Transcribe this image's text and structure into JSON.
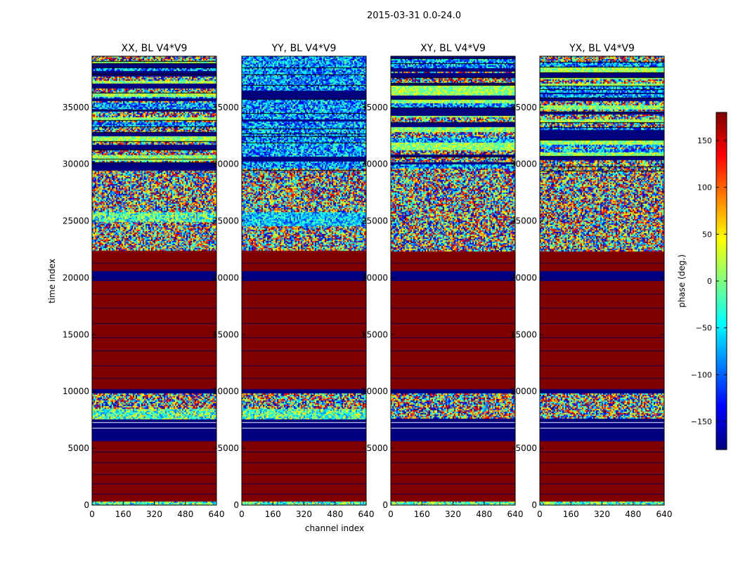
{
  "chart_data": {
    "type": "heatmap",
    "suptitle": "2015-03-31 0.0-24.0",
    "xlabel": "channel index",
    "ylabel": "time index",
    "xlim": [
      0,
      640
    ],
    "ylim": [
      0,
      39500
    ],
    "xticks": [
      0,
      160,
      320,
      480,
      640
    ],
    "yticks": [
      0,
      5000,
      10000,
      15000,
      20000,
      25000,
      30000,
      35000
    ],
    "colorbar": {
      "label": "phase (deg.)",
      "range": [
        -180,
        180
      ],
      "ticks": [
        -150,
        -100,
        -50,
        0,
        50,
        100,
        150
      ],
      "colormap": [
        "#00007f",
        "#0000ff",
        "#00ffff",
        "#7fff7f",
        "#ffff00",
        "#ff7f00",
        "#ff0000",
        "#7f0000"
      ]
    },
    "panels": [
      {
        "title": "XX, BL V4*V9",
        "bands": [
          {
            "t0": 0,
            "t1": 300,
            "kind": "noise_green"
          },
          {
            "t0": 300,
            "t1": 5600,
            "phase": 180
          },
          {
            "t0": 5600,
            "t1": 7600,
            "phase": -180
          },
          {
            "t0": 7600,
            "t1": 8500,
            "kind": "noise_green"
          },
          {
            "t0": 8500,
            "t1": 9800,
            "kind": "noise"
          },
          {
            "t0": 9800,
            "t1": 10200,
            "phase": -180
          },
          {
            "t0": 10200,
            "t1": 19700,
            "phase": 180
          },
          {
            "t0": 19700,
            "t1": 20600,
            "phase": -180
          },
          {
            "t0": 20600,
            "t1": 22400,
            "phase": 180
          },
          {
            "t0": 22400,
            "t1": 25000,
            "kind": "noise"
          },
          {
            "t0": 25000,
            "t1": 25800,
            "kind": "noise_green"
          },
          {
            "t0": 25800,
            "t1": 29600,
            "kind": "noise"
          },
          {
            "t0": 29600,
            "t1": 39500,
            "kind": "striped"
          }
        ]
      },
      {
        "title": "YY, BL V4*V9",
        "bands": [
          {
            "t0": 0,
            "t1": 300,
            "kind": "noise_green"
          },
          {
            "t0": 300,
            "t1": 5600,
            "phase": 180
          },
          {
            "t0": 5600,
            "t1": 7600,
            "phase": -180
          },
          {
            "t0": 7600,
            "t1": 8500,
            "kind": "noise_green"
          },
          {
            "t0": 8500,
            "t1": 9800,
            "kind": "noise"
          },
          {
            "t0": 9800,
            "t1": 10200,
            "phase": -180
          },
          {
            "t0": 10200,
            "t1": 19700,
            "phase": 180
          },
          {
            "t0": 19700,
            "t1": 20600,
            "phase": -180
          },
          {
            "t0": 20600,
            "t1": 22400,
            "phase": 180
          },
          {
            "t0": 22400,
            "t1": 24600,
            "kind": "noise"
          },
          {
            "t0": 24600,
            "t1": 25800,
            "kind": "noise_blue"
          },
          {
            "t0": 25800,
            "t1": 29600,
            "kind": "noise"
          },
          {
            "t0": 29600,
            "t1": 39500,
            "kind": "striped_blue"
          }
        ]
      },
      {
        "title": "XY, BL V4*V9",
        "bands": [
          {
            "t0": 0,
            "t1": 300,
            "kind": "noise_green"
          },
          {
            "t0": 300,
            "t1": 5600,
            "phase": 180
          },
          {
            "t0": 5600,
            "t1": 7600,
            "phase": -180
          },
          {
            "t0": 7600,
            "t1": 9800,
            "kind": "noise"
          },
          {
            "t0": 9800,
            "t1": 10200,
            "phase": -180
          },
          {
            "t0": 10200,
            "t1": 19700,
            "phase": 180
          },
          {
            "t0": 19700,
            "t1": 20600,
            "phase": -180
          },
          {
            "t0": 20600,
            "t1": 22400,
            "phase": 180
          },
          {
            "t0": 22400,
            "t1": 29600,
            "kind": "noise"
          },
          {
            "t0": 29600,
            "t1": 39500,
            "kind": "striped"
          }
        ]
      },
      {
        "title": "YX, BL V4*V9",
        "bands": [
          {
            "t0": 0,
            "t1": 300,
            "kind": "noise_green"
          },
          {
            "t0": 300,
            "t1": 5600,
            "phase": 180
          },
          {
            "t0": 5600,
            "t1": 7600,
            "phase": -180
          },
          {
            "t0": 7600,
            "t1": 9800,
            "kind": "noise"
          },
          {
            "t0": 9800,
            "t1": 10200,
            "phase": -180
          },
          {
            "t0": 10200,
            "t1": 19700,
            "phase": 180
          },
          {
            "t0": 19700,
            "t1": 20600,
            "phase": -180
          },
          {
            "t0": 20600,
            "t1": 22400,
            "phase": 180
          },
          {
            "t0": 22400,
            "t1": 29600,
            "kind": "noise"
          },
          {
            "t0": 29600,
            "t1": 39500,
            "kind": "striped"
          }
        ]
      }
    ]
  }
}
